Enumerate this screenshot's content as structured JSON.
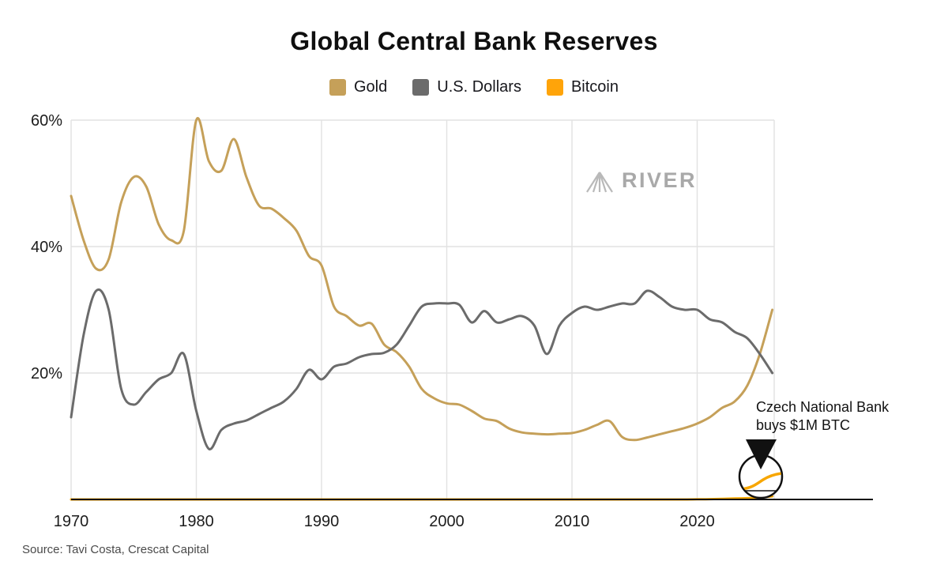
{
  "title": "Global Central Bank Reserves",
  "watermark": "RIVER",
  "annotation": {
    "line1": "Czech National Bank",
    "line2": "buys $1M BTC"
  },
  "source": "Source: Tavi Costa, Crescat Capital",
  "legend": [
    {
      "label": "Gold",
      "color": "#C5A059"
    },
    {
      "label": "U.S. Dollars",
      "color": "#6B6B6B"
    },
    {
      "label": "Bitcoin",
      "color": "#FFA409"
    }
  ],
  "chart_data": {
    "type": "line",
    "title": "Global Central Bank Reserves",
    "grid": true,
    "legend_position": "top",
    "xticks": [
      1970,
      1980,
      1990,
      2000,
      2010,
      2020
    ],
    "yticks": [
      20,
      40,
      60
    ],
    "ytick_format": "percent",
    "ylim": [
      0,
      60
    ],
    "years": [
      1970,
      1971,
      1972,
      1973,
      1974,
      1975,
      1976,
      1977,
      1978,
      1979,
      1980,
      1981,
      1982,
      1983,
      1984,
      1985,
      1986,
      1987,
      1988,
      1989,
      1990,
      1991,
      1992,
      1993,
      1994,
      1995,
      1996,
      1997,
      1998,
      1999,
      2000,
      2001,
      2002,
      2003,
      2004,
      2005,
      2006,
      2007,
      2008,
      2009,
      2010,
      2011,
      2012,
      2013,
      2014,
      2015,
      2016,
      2017,
      2018,
      2019,
      2020,
      2021,
      2022,
      2023,
      2024,
      2025,
      2026
    ],
    "series": [
      {
        "name": "Gold",
        "color": "#C5A059",
        "values": [
          48,
          41,
          36.5,
          38,
          47,
          51,
          49.5,
          43.5,
          41,
          42.5,
          60,
          53.5,
          52,
          57,
          51,
          46.5,
          46,
          44.5,
          42.5,
          38.5,
          37,
          30.5,
          29,
          27.5,
          27.8,
          24.5,
          23.3,
          21,
          17.5,
          16,
          15.2,
          15,
          14,
          12.8,
          12.4,
          11.2,
          10.6,
          10.4,
          10.3,
          10.4,
          10.5,
          11,
          11.8,
          12.4,
          9.9,
          9.4,
          9.8,
          10.3,
          10.8,
          11.3,
          12,
          13,
          14.5,
          15.5,
          18,
          23,
          30
        ]
      },
      {
        "name": "U.S. Dollars",
        "color": "#6B6B6B",
        "values": [
          13,
          26,
          33,
          30,
          17.5,
          15,
          17,
          19,
          20,
          23,
          14,
          8,
          11,
          12,
          12.5,
          13.5,
          14.5,
          15.5,
          17.5,
          20.5,
          19,
          21,
          21.5,
          22.5,
          23,
          23.2,
          24.5,
          27.5,
          30.5,
          31,
          31,
          30.8,
          28,
          29.8,
          28,
          28.5,
          29,
          27.5,
          23,
          27.5,
          29.5,
          30.5,
          30,
          30.5,
          31,
          31,
          33,
          32,
          30.5,
          30,
          30,
          28.5,
          28,
          26.5,
          25.5,
          23,
          20
        ]
      },
      {
        "name": "Bitcoin",
        "color": "#F7A600",
        "values": [
          0,
          0,
          0,
          0,
          0,
          0,
          0,
          0,
          0,
          0,
          0,
          0,
          0,
          0,
          0,
          0,
          0,
          0,
          0,
          0,
          0,
          0,
          0,
          0,
          0,
          0,
          0,
          0,
          0,
          0,
          0,
          0,
          0,
          0,
          0,
          0,
          0,
          0,
          0,
          0,
          0,
          0,
          0,
          0,
          0,
          0,
          0,
          0,
          0,
          0,
          0.02,
          0.05,
          0.1,
          0.15,
          0.2,
          0.3,
          0.5
        ]
      }
    ],
    "inset": {
      "description": "magnifier showing Bitcoin line near zero at right edge"
    }
  }
}
